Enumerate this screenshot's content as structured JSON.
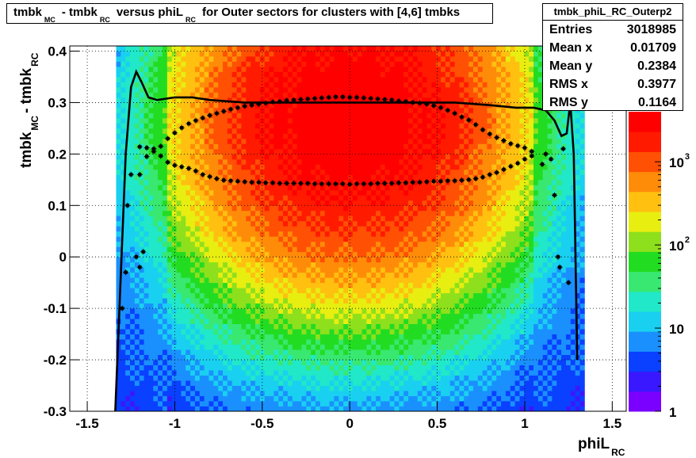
{
  "window": {
    "title_parts": {
      "a": "tmbk",
      "a_sub": "MC",
      "b": "- tmbk",
      "b_sub": "RC",
      "c": "versus phiL",
      "c_sub": "RC",
      "d": "for Outer sectors for clusters with [4,6] tmbks"
    }
  },
  "stats": {
    "name": "tmbk_phiL_RC_Outerp2",
    "rows": [
      {
        "label": "Entries",
        "value": "3018985"
      },
      {
        "label": "Mean x",
        "value": "0.01709"
      },
      {
        "label": "Mean y",
        "value": "0.2384"
      },
      {
        "label": "RMS x",
        "value": "0.3977"
      },
      {
        "label": "RMS y",
        "value": "0.1164"
      }
    ]
  },
  "axes": {
    "x_label": "phiL",
    "x_sub": "RC",
    "y_label": "tmbk",
    "y_sub1": "MC",
    "y_mid": "- tmbk",
    "y_sub2": "RC",
    "x_ticks": [
      "-1.5",
      "-1",
      "-0.5",
      "0",
      "0.5",
      "1",
      "1.5"
    ],
    "y_ticks": [
      "-0.3",
      "-0.2",
      "-0.1",
      "0",
      "0.1",
      "0.2",
      "0.3",
      "0.4"
    ],
    "z_ticks": [
      {
        "base": "1",
        "exp": ""
      },
      {
        "base": "10",
        "exp": ""
      },
      {
        "base": "10",
        "exp": "2"
      },
      {
        "base": "10",
        "exp": "3"
      }
    ]
  },
  "chart_data": {
    "type": "heatmap",
    "xlim": [
      -1.6,
      1.58
    ],
    "ylim": [
      -0.3,
      0.41
    ],
    "zlim": [
      1,
      4000
    ],
    "z_log": true,
    "grid": true,
    "colors": {
      "palette": [
        "#7a00ff",
        "#3a18ff",
        "#0a40ff",
        "#1a90ff",
        "#19d0f0",
        "#20e8c8",
        "#38e870",
        "#22dc22",
        "#8ee01c",
        "#e8ee10",
        "#ffc010",
        "#ff8c08",
        "#ff5004",
        "#ff1a00",
        "#ff0000"
      ],
      "profile": "#000000",
      "frame": "#000000"
    },
    "series": [
      {
        "name": "mean",
        "style": "line",
        "x": [
          -1.34,
          -1.31,
          -1.28,
          -1.25,
          -1.22,
          -1.19,
          -1.15,
          -1.1,
          -1.0,
          -0.9,
          -0.8,
          -0.6,
          -0.4,
          -0.2,
          0.0,
          0.2,
          0.4,
          0.6,
          0.8,
          0.95,
          1.05,
          1.12,
          1.17,
          1.21,
          1.24,
          1.26,
          1.28,
          1.3
        ],
        "y": [
          -0.31,
          -0.05,
          0.2,
          0.33,
          0.36,
          0.34,
          0.31,
          0.305,
          0.31,
          0.31,
          0.305,
          0.3,
          0.3,
          0.3,
          0.3,
          0.3,
          0.3,
          0.3,
          0.295,
          0.29,
          0.29,
          0.285,
          0.265,
          0.235,
          0.24,
          0.3,
          0.2,
          -0.2
        ]
      },
      {
        "name": "upper",
        "style": "points",
        "x": [
          -1.2,
          -1.16,
          -1.12,
          -1.08,
          -1.04,
          -1.0,
          -0.96,
          -0.92,
          -0.88,
          -0.84,
          -0.8,
          -0.76,
          -0.72,
          -0.68,
          -0.64,
          -0.6,
          -0.56,
          -0.52,
          -0.48,
          -0.44,
          -0.4,
          -0.36,
          -0.32,
          -0.28,
          -0.24,
          -0.2,
          -0.16,
          -0.12,
          -0.08,
          -0.04,
          0.0,
          0.04,
          0.08,
          0.12,
          0.16,
          0.2,
          0.24,
          0.28,
          0.32,
          0.36,
          0.4,
          0.44,
          0.48,
          0.52,
          0.56,
          0.6,
          0.64,
          0.68,
          0.72,
          0.76,
          0.8,
          0.84,
          0.88,
          0.92,
          0.96,
          1.0,
          1.04
        ],
        "y": [
          0.214,
          0.212,
          0.205,
          0.215,
          0.23,
          0.241,
          0.251,
          0.259,
          0.265,
          0.27,
          0.275,
          0.279,
          0.283,
          0.287,
          0.29,
          0.293,
          0.295,
          0.297,
          0.299,
          0.301,
          0.302,
          0.304,
          0.305,
          0.306,
          0.307,
          0.308,
          0.309,
          0.31,
          0.311,
          0.311,
          0.31,
          0.31,
          0.309,
          0.308,
          0.307,
          0.306,
          0.305,
          0.303,
          0.302,
          0.3,
          0.299,
          0.297,
          0.294,
          0.29,
          0.285,
          0.279,
          0.272,
          0.266,
          0.257,
          0.247,
          0.239,
          0.232,
          0.226,
          0.22,
          0.216,
          0.212,
          0.205
        ]
      },
      {
        "name": "lower",
        "style": "points",
        "x": [
          -1.2,
          -1.16,
          -1.12,
          -1.08,
          -1.04,
          -1.0,
          -0.96,
          -0.92,
          -0.88,
          -0.84,
          -0.8,
          -0.76,
          -0.72,
          -0.68,
          -0.64,
          -0.6,
          -0.56,
          -0.52,
          -0.48,
          -0.44,
          -0.4,
          -0.36,
          -0.32,
          -0.28,
          -0.24,
          -0.2,
          -0.16,
          -0.12,
          -0.08,
          -0.04,
          0.0,
          0.04,
          0.08,
          0.12,
          0.16,
          0.2,
          0.24,
          0.28,
          0.32,
          0.36,
          0.4,
          0.44,
          0.48,
          0.52,
          0.56,
          0.6,
          0.64,
          0.68,
          0.72,
          0.76,
          0.8,
          0.84,
          0.88,
          0.92,
          0.96,
          1.0,
          1.04
        ],
        "y": [
          0.16,
          0.195,
          0.21,
          0.196,
          0.184,
          0.178,
          0.175,
          0.172,
          0.167,
          0.16,
          0.156,
          0.152,
          0.149,
          0.148,
          0.147,
          0.146,
          0.145,
          0.145,
          0.144,
          0.144,
          0.143,
          0.143,
          0.143,
          0.143,
          0.143,
          0.142,
          0.142,
          0.142,
          0.142,
          0.142,
          0.141,
          0.142,
          0.142,
          0.142,
          0.143,
          0.143,
          0.143,
          0.144,
          0.144,
          0.145,
          0.145,
          0.146,
          0.147,
          0.147,
          0.148,
          0.148,
          0.149,
          0.15,
          0.152,
          0.155,
          0.16,
          0.164,
          0.17,
          0.176,
          0.182,
          0.19,
          0.196
        ]
      },
      {
        "name": "edge-left",
        "style": "points",
        "x": [
          -1.3,
          -1.28,
          -1.27,
          -1.25,
          -1.22,
          -1.2,
          -1.18
        ],
        "y": [
          -0.1,
          -0.03,
          0.1,
          0.16,
          0.0,
          -0.02,
          0.01
        ]
      },
      {
        "name": "edge-right",
        "style": "points",
        "x": [
          1.1,
          1.12,
          1.15,
          1.17,
          1.19,
          1.2,
          1.22,
          1.25
        ],
        "y": [
          0.18,
          0.2,
          0.19,
          0.12,
          0.0,
          -0.02,
          0.21,
          -0.05
        ]
      }
    ]
  }
}
